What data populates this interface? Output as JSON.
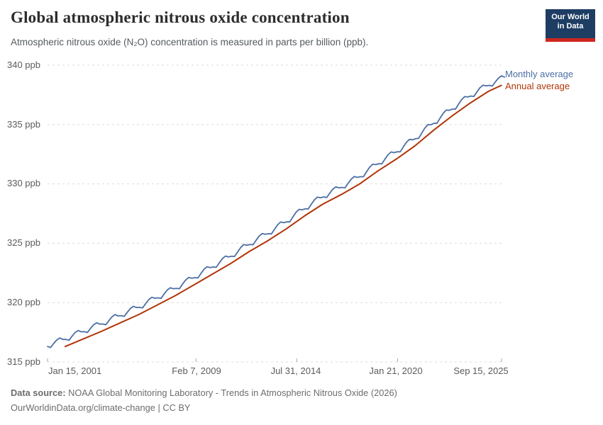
{
  "header": {
    "title": "Global atmospheric nitrous oxide concentration",
    "subtitle": "Atmospheric nitrous oxide (N₂O) concentration is measured in parts per billion (ppb).",
    "logo": {
      "line1": "Our World",
      "line2": "in Data",
      "bg_color": "#1d3d63",
      "bar_color": "#ce261e"
    }
  },
  "chart_data": {
    "type": "line",
    "title": "Global atmospheric nitrous oxide concentration",
    "xlabel": "",
    "ylabel": "ppb",
    "ylim": [
      315,
      340
    ],
    "grid": "horizontal-dashed",
    "legend_position": "right-of-line-ends",
    "y_ticks": [
      {
        "label": "340 ppb",
        "value": 340
      },
      {
        "label": "335 ppb",
        "value": 335
      },
      {
        "label": "330 ppb",
        "value": 330
      },
      {
        "label": "325 ppb",
        "value": 325
      },
      {
        "label": "320 ppb",
        "value": 320
      },
      {
        "label": "315 ppb",
        "value": 315
      }
    ],
    "x_ticks": [
      {
        "label": "Jan 15, 2001",
        "t": 2001.04
      },
      {
        "label": "Feb 7, 2009",
        "t": 2009.1
      },
      {
        "label": "Jul 31, 2014",
        "t": 2014.58
      },
      {
        "label": "Jan 21, 2020",
        "t": 2020.06
      },
      {
        "label": "Sep 15, 2025",
        "t": 2025.71
      }
    ],
    "series": [
      {
        "name": "Monthly average",
        "color": "#4C6FA5",
        "start": 2001.04,
        "step_years": 0.166667,
        "values": [
          316.3,
          316.22,
          316.55,
          316.85,
          317.02,
          316.9,
          316.9,
          316.83,
          317.17,
          317.48,
          317.65,
          317.54,
          317.55,
          317.48,
          317.82,
          318.13,
          318.3,
          318.19,
          318.2,
          318.14,
          318.48,
          318.8,
          318.99,
          318.88,
          318.9,
          318.84,
          319.18,
          319.5,
          319.69,
          319.58,
          319.6,
          319.55,
          319.92,
          320.25,
          320.45,
          320.37,
          320.4,
          320.35,
          320.72,
          321.05,
          321.25,
          321.17,
          321.2,
          321.17,
          321.55,
          321.9,
          322.12,
          322.05,
          322.1,
          322.07,
          322.45,
          322.8,
          323.02,
          322.95,
          323.0,
          322.97,
          323.35,
          323.7,
          323.92,
          323.85,
          323.9,
          323.89,
          324.28,
          324.65,
          324.89,
          324.83,
          324.9,
          324.87,
          325.25,
          325.6,
          325.82,
          325.75,
          325.8,
          325.79,
          326.18,
          326.55,
          326.79,
          326.73,
          326.8,
          326.8,
          327.22,
          327.6,
          327.85,
          327.82,
          327.9,
          327.89,
          328.28,
          328.65,
          328.89,
          328.83,
          328.9,
          328.85,
          329.22,
          329.55,
          329.75,
          329.67,
          329.7,
          329.67,
          330.05,
          330.4,
          330.62,
          330.55,
          330.6,
          330.6,
          331.02,
          331.4,
          331.65,
          331.62,
          331.7,
          331.69,
          332.08,
          332.45,
          332.69,
          332.63,
          332.7,
          332.7,
          333.12,
          333.5,
          333.75,
          333.72,
          333.8,
          333.84,
          334.28,
          334.7,
          334.99,
          334.98,
          335.1,
          335.12,
          335.55,
          335.95,
          336.22,
          336.2,
          336.3,
          336.3,
          336.72,
          337.1,
          337.35,
          337.32,
          337.4,
          337.37,
          337.75,
          338.1,
          338.32,
          338.25,
          338.3,
          338.24,
          338.59,
          338.91,
          339.1,
          339.0
        ]
      },
      {
        "name": "Annual average",
        "color": "#B13507",
        "points": [
          [
            2002.0,
            316.3
          ],
          [
            2003.0,
            316.95
          ],
          [
            2004.0,
            317.6
          ],
          [
            2005.0,
            318.3
          ],
          [
            2006.0,
            319.0
          ],
          [
            2007.0,
            319.8
          ],
          [
            2008.0,
            320.6
          ],
          [
            2009.0,
            321.5
          ],
          [
            2010.0,
            322.4
          ],
          [
            2011.0,
            323.3
          ],
          [
            2012.0,
            324.3
          ],
          [
            2013.0,
            325.2
          ],
          [
            2014.0,
            326.2
          ],
          [
            2015.0,
            327.3
          ],
          [
            2016.0,
            328.3
          ],
          [
            2017.0,
            329.1
          ],
          [
            2018.0,
            330.0
          ],
          [
            2019.0,
            331.1
          ],
          [
            2020.0,
            332.1
          ],
          [
            2021.0,
            333.2
          ],
          [
            2022.0,
            334.5
          ],
          [
            2023.0,
            335.7
          ],
          [
            2024.0,
            336.8
          ],
          [
            2025.0,
            337.8
          ],
          [
            2025.7,
            338.3
          ]
        ]
      }
    ]
  },
  "footer": {
    "source_label": "Data source:",
    "source_text": " NOAA Global Monitoring Laboratory - Trends in Atmospheric Nitrous Oxide (2026)",
    "link": "OurWorldinData.org/climate-change",
    "separator": " | ",
    "license": "CC BY"
  }
}
